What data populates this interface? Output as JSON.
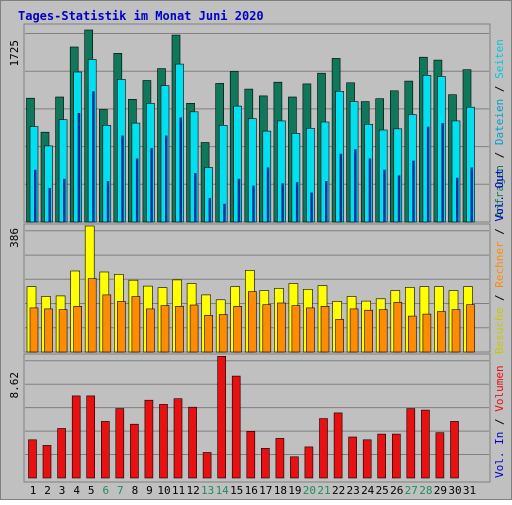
{
  "title": "Tages-Statistik im Monat Juni 2020",
  "colors": {
    "background": "#C0C0C0",
    "frame": "#D4D0C8",
    "grid": "#808080",
    "title": "#0000CC",
    "anfragen": "#10785A",
    "dateien": "#00E0F0",
    "seiten": "#0A2F9A",
    "besuche": "#FFFF00",
    "rechner": "#FF8C00",
    "volumen": "#E81010",
    "weekend_label": "#228B5A",
    "weekday_label": "#000000"
  },
  "legend": {
    "panel1": [
      {
        "text": "Anfragen",
        "color": "#10785A"
      },
      {
        "text": "Dateien",
        "color": "#00A0C8"
      },
      {
        "text": "Seiten",
        "color": "#00C8E0"
      }
    ],
    "panel2": [
      {
        "text": "Besuche",
        "color": "#C8C800"
      },
      {
        "text": "Rechner",
        "color": "#FF8C00"
      },
      {
        "text": "Vol. Out",
        "color": "#0000CC"
      }
    ],
    "panel3": [
      {
        "text": "Vol. In",
        "color": "#0000CC"
      },
      {
        "text": "Volumen",
        "color": "#E81010"
      }
    ]
  },
  "chart_data": [
    {
      "type": "bar",
      "panel": "requests",
      "max_label": "1725",
      "ylim": [
        0,
        1725
      ],
      "categories": [
        "1",
        "2",
        "3",
        "4",
        "5",
        "6",
        "7",
        "8",
        "9",
        "10",
        "11",
        "12",
        "13",
        "14",
        "15",
        "16",
        "17",
        "18",
        "19",
        "20",
        "21",
        "22",
        "23",
        "24",
        "25",
        "26",
        "27",
        "28",
        "29",
        "30",
        "31"
      ],
      "weekend_days": [
        "6",
        "7",
        "13",
        "14",
        "20",
        "21",
        "27",
        "28"
      ],
      "series": [
        {
          "name": "Anfragen",
          "values": [
            1090,
            790,
            1100,
            1540,
            1690,
            990,
            1485,
            1080,
            1245,
            1350,
            1645,
            1045,
            700,
            1220,
            1325,
            1170,
            1110,
            1230,
            1100,
            1215,
            1310,
            1440,
            1225,
            1060,
            1085,
            1155,
            1240,
            1450,
            1425,
            1120,
            1340
          ]
        },
        {
          "name": "Dateien",
          "values": [
            840,
            670,
            900,
            1320,
            1430,
            850,
            1255,
            870,
            1045,
            1200,
            1390,
            970,
            480,
            850,
            1020,
            910,
            800,
            890,
            780,
            825,
            880,
            1150,
            1060,
            860,
            810,
            820,
            945,
            1290,
            1280,
            890,
            1010
          ]
        },
        {
          "name": "Seiten",
          "values": [
            460,
            300,
            380,
            960,
            1150,
            360,
            760,
            560,
            650,
            760,
            920,
            430,
            210,
            160,
            380,
            320,
            480,
            340,
            350,
            260,
            360,
            600,
            640,
            560,
            460,
            410,
            540,
            840,
            870,
            390,
            480
          ]
        }
      ]
    },
    {
      "type": "bar",
      "panel": "visits",
      "max_label": "386",
      "ylim": [
        0,
        386
      ],
      "categories": [
        "1",
        "2",
        "3",
        "4",
        "5",
        "6",
        "7",
        "8",
        "9",
        "10",
        "11",
        "12",
        "13",
        "14",
        "15",
        "16",
        "17",
        "18",
        "19",
        "20",
        "21",
        "22",
        "23",
        "24",
        "25",
        "26",
        "27",
        "28",
        "29",
        "30",
        "31"
      ],
      "series": [
        {
          "name": "Besuche",
          "values": [
            200,
            170,
            172,
            248,
            386,
            245,
            238,
            220,
            202,
            197,
            221,
            210,
            175,
            160,
            200,
            250,
            188,
            195,
            210,
            192,
            203,
            155,
            170,
            156,
            163,
            188,
            198,
            200,
            200,
            188,
            200
          ]
        },
        {
          "name": "Rechner",
          "values": [
            135,
            132,
            130,
            140,
            225,
            175,
            155,
            170,
            132,
            142,
            140,
            144,
            112,
            115,
            140,
            185,
            145,
            150,
            142,
            135,
            140,
            100,
            132,
            128,
            130,
            152,
            110,
            116,
            124,
            130,
            145
          ]
        }
      ]
    },
    {
      "type": "bar",
      "panel": "volume",
      "max_label": "8.62",
      "ylim": [
        0,
        8.62
      ],
      "unit": "",
      "categories": [
        "1",
        "2",
        "3",
        "4",
        "5",
        "6",
        "7",
        "8",
        "9",
        "10",
        "11",
        "12",
        "13",
        "14",
        "15",
        "16",
        "17",
        "18",
        "19",
        "20",
        "21",
        "22",
        "23",
        "24",
        "25",
        "26",
        "27",
        "28",
        "29",
        "30",
        "31"
      ],
      "series": [
        {
          "name": "Volumen",
          "values": [
            2.7,
            2.3,
            3.5,
            5.8,
            5.8,
            4.0,
            4.9,
            3.8,
            5.5,
            5.2,
            5.6,
            5.0,
            1.8,
            8.6,
            7.2,
            3.3,
            2.1,
            2.8,
            1.5,
            2.2,
            4.2,
            4.6,
            2.9,
            2.7,
            3.1,
            3.1,
            4.9,
            4.8,
            3.2,
            4.0,
            0
          ]
        }
      ]
    }
  ]
}
